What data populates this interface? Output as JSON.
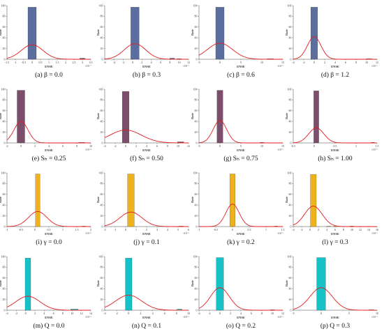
{
  "figure": {
    "panels": [
      {
        "caption": "(a) β = 0.0"
      },
      {
        "caption": "(b) β = 0.3"
      },
      {
        "caption": "(c) β = 0.6"
      },
      {
        "caption": "(d) β = 1.2"
      },
      {
        "caption": "(e) Sₕ = 0.25"
      },
      {
        "caption": "(f) Sₕ = 0.50"
      },
      {
        "caption": "(g) Sₕ = 0.75"
      },
      {
        "caption": "(h) Sₕ = 1.00"
      },
      {
        "caption": "(i) γ = 0.0"
      },
      {
        "caption": "(j) γ = 0.1"
      },
      {
        "caption": "(k) γ = 0.2"
      },
      {
        "caption": "(l) γ = 0.3"
      },
      {
        "caption": "(m) Q = 0.0"
      },
      {
        "caption": "(n) Q = 0.1"
      },
      {
        "caption": "(o) Q = 0.2"
      },
      {
        "caption": "(p) Q = 0.3"
      }
    ]
  },
  "colors": {
    "row1_bar": "#5a6f9e",
    "row2_bar": "#7b4f6c",
    "row3_bar": "#efb21a",
    "row4_bar": "#14c2c8",
    "fit_curve": "#e41a1c",
    "axis": "#444444"
  },
  "chart_data": [
    {
      "type": "bar",
      "panel": "a",
      "caption": "(a) β = 0.0",
      "xlabel": "ENSE",
      "ylabel": "Rate",
      "xlim": [
        -1.5,
        3.5
      ],
      "ylim": [
        0,
        100
      ],
      "x_ticks": [
        "-1.5",
        "-1",
        "-0.5",
        "0",
        "0.5",
        "1",
        "1.5",
        "2",
        "2.5",
        "3",
        "3.5"
      ],
      "y_ticks": [
        "0",
        "20",
        "40",
        "60",
        "80",
        "100"
      ],
      "x_exponent": "×10⁻⁷",
      "bars": [
        {
          "x": 0,
          "width": 0.5,
          "value": 97
        },
        {
          "x": 3,
          "width": 0.3,
          "value": 2
        }
      ],
      "fit_curve": {
        "mean": 0,
        "peak": 27,
        "sigma": 0.65
      }
    },
    {
      "type": "bar",
      "panel": "b",
      "caption": "(b) β = 0.3",
      "xlabel": "ENSE",
      "ylabel": "Rate",
      "xlim": [
        -6,
        12
      ],
      "ylim": [
        0,
        100
      ],
      "x_ticks": [
        "-6",
        "-4",
        "-2",
        "0",
        "2",
        "4",
        "6",
        "8",
        "10",
        "12"
      ],
      "y_ticks": [
        "0",
        "20",
        "40",
        "60",
        "80",
        "100"
      ],
      "x_exponent": "×10⁻⁷",
      "bars": [
        {
          "x": 0.5,
          "width": 1.8,
          "value": 97
        },
        {
          "x": 8.5,
          "width": 1,
          "value": 2
        },
        {
          "x": 10,
          "width": 1,
          "value": 1
        }
      ],
      "fit_curve": {
        "mean": 0.5,
        "peak": 29,
        "sigma": 2.3
      }
    },
    {
      "type": "bar",
      "panel": "c",
      "caption": "(c) β = 0.6",
      "xlabel": "ENSE",
      "ylabel": "Rate",
      "xlim": [
        -5,
        15
      ],
      "ylim": [
        0,
        100
      ],
      "x_ticks": [
        "-5",
        "0",
        "5",
        "10",
        "15"
      ],
      "y_ticks": [
        "0",
        "20",
        "40",
        "60",
        "80",
        "100"
      ],
      "x_exponent": "×10⁻⁷",
      "bars": [
        {
          "x": 0,
          "width": 2,
          "value": 97
        },
        {
          "x": 12,
          "width": 1.5,
          "value": 1
        }
      ],
      "fit_curve": {
        "mean": 0,
        "peak": 30,
        "sigma": 3
      }
    },
    {
      "type": "bar",
      "panel": "d",
      "caption": "(d) β = 1.2",
      "xlabel": "ENSE",
      "ylabel": "Rate",
      "xlim": [
        -4,
        12
      ],
      "ylim": [
        0,
        100
      ],
      "x_ticks": [
        "-4",
        "-2",
        "0",
        "2",
        "4",
        "6",
        "8",
        "10",
        "12"
      ],
      "y_ticks": [
        "0",
        "20",
        "40",
        "60",
        "80",
        "100"
      ],
      "x_exponent": "×10⁻⁶",
      "bars": [
        {
          "x": 0,
          "width": 1.3,
          "value": 97
        },
        {
          "x": 10.5,
          "width": 1,
          "value": 1
        }
      ],
      "fit_curve": {
        "mean": 0,
        "peak": 42,
        "sigma": 1.3
      }
    },
    {
      "type": "bar",
      "panel": "e",
      "caption": "(e) Sₕ = 0.25",
      "xlabel": "ENSE",
      "ylabel": "Rate",
      "xlim": [
        -2,
        10
      ],
      "ylim": [
        0,
        100
      ],
      "x_ticks": [
        "-2",
        "0",
        "2",
        "4",
        "6",
        "8",
        "10"
      ],
      "y_ticks": [
        "0",
        "20",
        "40",
        "60",
        "80",
        "100"
      ],
      "x_exponent": "×10⁻⁸",
      "bars": [
        {
          "x": 0,
          "width": 1.1,
          "value": 98
        },
        {
          "x": 8.7,
          "width": 0.8,
          "value": 1
        }
      ],
      "fit_curve": {
        "mean": 0,
        "peak": 40,
        "sigma": 1.0
      }
    },
    {
      "type": "bar",
      "panel": "f",
      "caption": "(f) Sₕ = 0.50",
      "xlabel": "ENSE",
      "ylabel": "Rate",
      "xlim": [
        -4,
        12
      ],
      "ylim": [
        0,
        100
      ],
      "x_ticks": [
        "-4",
        "-2",
        "0",
        "2",
        "4",
        "6",
        "8",
        "10",
        "12"
      ],
      "y_ticks": [
        "0",
        "20",
        "40",
        "60",
        "80",
        "100"
      ],
      "x_exponent": "",
      "bars": [
        {
          "x": 0,
          "width": 1.3,
          "value": 96
        },
        {
          "x": 10.5,
          "width": 1.2,
          "value": 2
        }
      ],
      "fit_curve": {
        "mean": 0,
        "peak": 24,
        "sigma": 3.0
      }
    },
    {
      "type": "bar",
      "panel": "g",
      "caption": "(g) Sₕ = 0.75",
      "xlabel": "ENSE",
      "ylabel": "Rate",
      "xlim": [
        -5,
        15
      ],
      "ylim": [
        0,
        100
      ],
      "x_ticks": [
        "-5",
        "0",
        "5",
        "10",
        "15"
      ],
      "y_ticks": [
        "0",
        "20",
        "40",
        "60",
        "80",
        "100"
      ],
      "x_exponent": "×10⁻⁶",
      "bars": [
        {
          "x": 0,
          "width": 1.4,
          "value": 98
        },
        {
          "x": 10,
          "width": 1,
          "value": 1
        }
      ],
      "fit_curve": {
        "mean": 0,
        "peak": 42,
        "sigma": 1.6
      }
    },
    {
      "type": "bar",
      "panel": "h",
      "caption": "(h) Sₕ = 1.00",
      "xlabel": "ENSE",
      "ylabel": "Rate",
      "xlim": [
        -0.5,
        1.5
      ],
      "ylim": [
        0,
        100
      ],
      "x_ticks": [
        "-0.5",
        "0",
        "0.5",
        "1",
        "1.5"
      ],
      "y_ticks": [
        "0",
        "20",
        "40",
        "60",
        "80",
        "100"
      ],
      "x_exponent": "×10⁻⁵",
      "bars": [
        {
          "x": 0.05,
          "width": 0.12,
          "value": 97
        },
        {
          "x": 1.4,
          "width": 0.08,
          "value": 1
        }
      ],
      "fit_curve": {
        "mean": 0.05,
        "peak": 28,
        "sigma": 0.18
      }
    },
    {
      "type": "bar",
      "panel": "i",
      "caption": "(i) γ = 0.0",
      "xlabel": "ENSE",
      "ylabel": "Rate",
      "xlim": [
        -1,
        2
      ],
      "ylim": [
        0,
        100
      ],
      "x_ticks": [
        "-1",
        "-0.5",
        "0",
        "0.5",
        "1",
        "1.5",
        "2"
      ],
      "y_ticks": [
        "0",
        "20",
        "40",
        "60",
        "80",
        "100"
      ],
      "x_exponent": "×10⁻⁶",
      "bars": [
        {
          "x": 0.1,
          "width": 0.16,
          "value": 98
        },
        {
          "x": 1.75,
          "width": 0.12,
          "value": 1
        }
      ],
      "fit_curve": {
        "mean": 0.1,
        "peak": 28,
        "sigma": 0.33
      }
    },
    {
      "type": "bar",
      "panel": "j",
      "caption": "(j) γ = 0.1",
      "xlabel": "ENSE",
      "ylabel": "Rate",
      "xlim": [
        -2,
        6
      ],
      "ylim": [
        0,
        100
      ],
      "x_ticks": [
        "-2",
        "-1",
        "0",
        "1",
        "2",
        "3",
        "4",
        "5",
        "6"
      ],
      "y_ticks": [
        "0",
        "20",
        "40",
        "60",
        "80",
        "100"
      ],
      "x_exponent": "×10⁻⁶",
      "bars": [
        {
          "x": 0.5,
          "width": 0.65,
          "value": 98
        },
        {
          "x": 5.3,
          "width": 0.4,
          "value": 1
        }
      ],
      "fit_curve": {
        "mean": 0.5,
        "peak": 27,
        "sigma": 1.05
      }
    },
    {
      "type": "bar",
      "panel": "k",
      "caption": "(k) γ = 0.2",
      "xlabel": "ENSE",
      "ylabel": "Rate",
      "xlim": [
        -1,
        1.5
      ],
      "ylim": [
        0,
        100
      ],
      "x_ticks": [
        "-1",
        "-0.5",
        "0",
        "0.5",
        "1",
        "1.5"
      ],
      "y_ticks": [
        "0",
        "20",
        "40",
        "60",
        "80",
        "100"
      ],
      "x_exponent": "×10⁻⁶",
      "bars": [
        {
          "x": 0,
          "width": 0.16,
          "value": 98
        },
        {
          "x": 1.3,
          "width": 0.1,
          "value": 1
        }
      ],
      "fit_curve": {
        "mean": 0,
        "peak": 42,
        "sigma": 0.2
      }
    },
    {
      "type": "bar",
      "panel": "l",
      "caption": "(l) γ = 0.3",
      "xlabel": "ENSE",
      "ylabel": "Rate",
      "xlim": [
        -4,
        16
      ],
      "ylim": [
        0,
        100
      ],
      "x_ticks": [
        "-4",
        "-2",
        "0",
        "2",
        "4",
        "6",
        "8",
        "10",
        "12",
        "14",
        "16"
      ],
      "y_ticks": [
        "0",
        "20",
        "40",
        "60",
        "80",
        "100"
      ],
      "x_exponent": "×10⁻⁶",
      "bars": [
        {
          "x": 0.8,
          "width": 1.4,
          "value": 97
        },
        {
          "x": 4.5,
          "width": 0.8,
          "value": 1
        },
        {
          "x": 6,
          "width": 0.8,
          "value": 1
        },
        {
          "x": 10,
          "width": 0.8,
          "value": 1
        }
      ],
      "fit_curve": {
        "mean": 0.8,
        "peak": 38,
        "sigma": 2.1
      }
    },
    {
      "type": "bar",
      "panel": "m",
      "caption": "(m) Q = 0.0",
      "xlabel": "ENSE",
      "ylabel": "Rate",
      "xlim": [
        -4,
        14
      ],
      "ylim": [
        0,
        100
      ],
      "x_ticks": [
        "-4",
        "-2",
        "0",
        "2",
        "4",
        "6",
        "8",
        "10",
        "12",
        "14"
      ],
      "y_ticks": [
        "0",
        "20",
        "40",
        "60",
        "80",
        "100"
      ],
      "x_exponent": "×10⁻⁶",
      "bars": [
        {
          "x": 0.5,
          "width": 1.2,
          "value": 97
        },
        {
          "x": 10.5,
          "width": 1.6,
          "value": 2
        }
      ],
      "fit_curve": {
        "mean": 0.5,
        "peak": 26,
        "sigma": 2.6
      }
    },
    {
      "type": "bar",
      "panel": "n",
      "caption": "(n) Q = 0.1",
      "xlabel": "ENSE",
      "ylabel": "Rate",
      "xlim": [
        -4,
        10
      ],
      "ylim": [
        0,
        100
      ],
      "x_ticks": [
        "-4",
        "-2",
        "0",
        "2",
        "4",
        "6",
        "8",
        "10"
      ],
      "y_ticks": [
        "0",
        "20",
        "40",
        "60",
        "80",
        "100"
      ],
      "x_exponent": "×10⁻⁶",
      "bars": [
        {
          "x": 0,
          "width": 1.1,
          "value": 97
        },
        {
          "x": 8.5,
          "width": 0.8,
          "value": 2
        }
      ],
      "fit_curve": {
        "mean": 0,
        "peak": 28,
        "sigma": 2.2
      }
    },
    {
      "type": "bar",
      "panel": "o",
      "caption": "(o) Q = 0.2",
      "xlabel": "ENSE",
      "ylabel": "Rate",
      "xlim": [
        -4,
        12
      ],
      "ylim": [
        0,
        100
      ],
      "x_ticks": [
        "-4",
        "-2",
        "0",
        "2",
        "4",
        "6",
        "8",
        "10",
        "12"
      ],
      "y_ticks": [
        "0",
        "20",
        "40",
        "60",
        "80",
        "100"
      ],
      "x_exponent": "×10⁻⁶",
      "bars": [
        {
          "x": 0,
          "width": 1.4,
          "value": 98
        },
        {
          "x": 10,
          "width": 0.8,
          "value": 1
        }
      ],
      "fit_curve": {
        "mean": 0,
        "peak": 42,
        "sigma": 1.8
      }
    },
    {
      "type": "bar",
      "panel": "p",
      "caption": "(p) Q = 0.3",
      "xlabel": "ENSE",
      "ylabel": "Rate",
      "xlim": [
        -5,
        10
      ],
      "ylim": [
        0,
        100
      ],
      "x_ticks": [
        "-5",
        "0",
        "5",
        "10"
      ],
      "y_ticks": [
        "0",
        "20",
        "40",
        "60",
        "80",
        "100"
      ],
      "x_exponent": "×10⁻⁶",
      "bars": [
        {
          "x": 0,
          "width": 1.6,
          "value": 98
        },
        {
          "x": 9,
          "width": 0.8,
          "value": 1
        }
      ],
      "fit_curve": {
        "mean": 0,
        "peak": 42,
        "sigma": 2.0
      }
    }
  ]
}
